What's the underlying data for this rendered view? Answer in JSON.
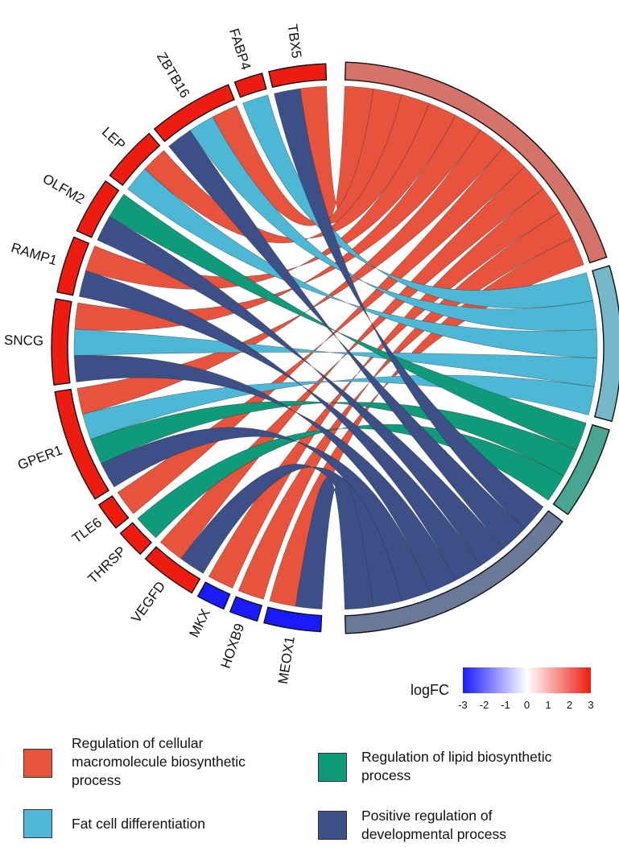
{
  "chart_data": {
    "type": "chord",
    "title": "",
    "genes": [
      {
        "name": "TBX5",
        "logFC": 3
      },
      {
        "name": "FABP4",
        "logFC": 3
      },
      {
        "name": "ZBTB16",
        "logFC": 3
      },
      {
        "name": "LEP",
        "logFC": 3
      },
      {
        "name": "OLFM2",
        "logFC": 3
      },
      {
        "name": "RAMP1",
        "logFC": 3
      },
      {
        "name": "SNCG",
        "logFC": 3
      },
      {
        "name": "GPER1",
        "logFC": 3
      },
      {
        "name": "TLE6",
        "logFC": 3
      },
      {
        "name": "THRSP",
        "logFC": 3
      },
      {
        "name": "VEGFD",
        "logFC": 3
      },
      {
        "name": "MKX",
        "logFC": -3
      },
      {
        "name": "HOXB9",
        "logFC": -3
      },
      {
        "name": "MEOX1",
        "logFC": -3
      }
    ],
    "terms": [
      {
        "name": "Regulation of cellular macromolecule biosynthetic process",
        "color": "#e8533d",
        "arc_color": "#d4736a",
        "genes": [
          "TBX5",
          "ZBTB16",
          "LEP",
          "RAMP1",
          "SNCG",
          "GPER1",
          "TLE6",
          "VEGFD",
          "MKX",
          "HOXB9",
          "MEOX1"
        ]
      },
      {
        "name": "Fat cell differentiation",
        "color": "#4cb8d6",
        "arc_color": "#75b8c9",
        "genes": [
          "FABP4",
          "ZBTB16",
          "LEP",
          "SNCG",
          "GPER1"
        ]
      },
      {
        "name": "Regulation of lipid biosynthetic process",
        "color": "#0f9a7a",
        "arc_color": "#48a592",
        "genes": [
          "OLFM2",
          "GPER1",
          "THRSP"
        ]
      },
      {
        "name": "Positive regulation of developmental process",
        "color": "#3c4f86",
        "arc_color": "#6a7998",
        "genes": [
          "TBX5",
          "ZBTB16",
          "OLFM2",
          "RAMP1",
          "SNCG",
          "GPER1",
          "VEGFD",
          "MEOX1"
        ]
      }
    ],
    "colorbar": {
      "title": "logFC",
      "min": -3,
      "max": 3,
      "ticks": [
        "-3",
        "-2",
        "-1",
        "0",
        "1",
        "2",
        "3"
      ],
      "low_color": "#1a1aff",
      "mid_color": "#ffffff",
      "high_color": "#ee1c10"
    }
  },
  "legend": {
    "items": [
      {
        "label": "Regulation of cellular\nmacromolecule biosynthetic\nprocess",
        "color": "#e8533d"
      },
      {
        "label": "Regulation of lipid biosynthetic\nprocess",
        "color": "#0f9a7a"
      },
      {
        "label": "Fat cell differentiation",
        "color": "#4cb8d6"
      },
      {
        "label": "Positive regulation of\ndevelopmental process",
        "color": "#3c4f86"
      }
    ]
  }
}
